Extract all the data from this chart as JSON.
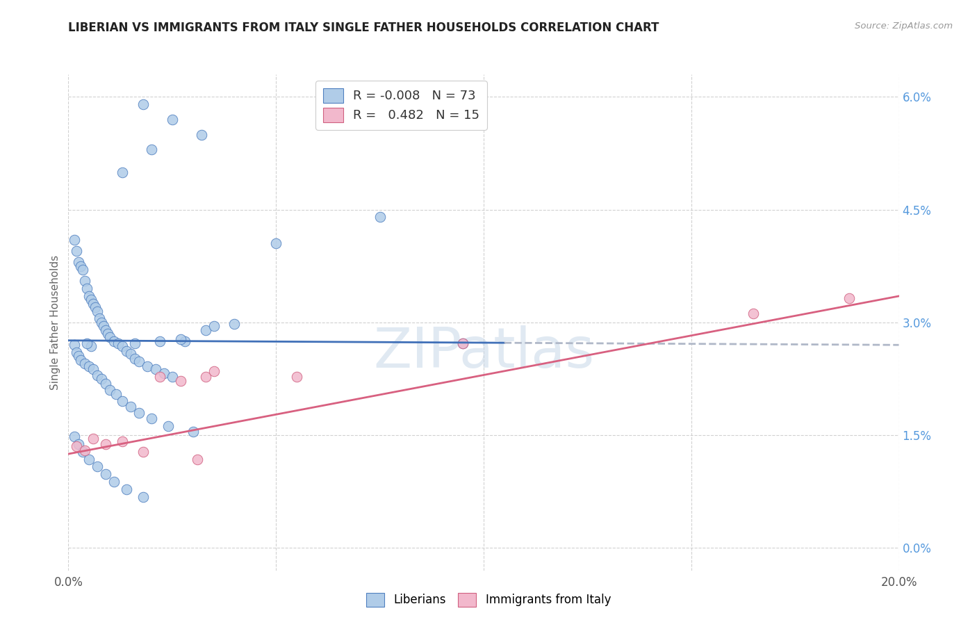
{
  "title": "LIBERIAN VS IMMIGRANTS FROM ITALY SINGLE FATHER HOUSEHOLDS CORRELATION CHART",
  "source": "Source: ZipAtlas.com",
  "ylabel": "Single Father Households",
  "ytick_vals": [
    0.0,
    1.5,
    3.0,
    4.5,
    6.0
  ],
  "ytick_labels": [
    "0.0%",
    "1.5%",
    "3.0%",
    "4.5%",
    "6.0%"
  ],
  "xtick_vals": [
    0,
    5,
    10,
    15,
    20
  ],
  "xtick_labels": [
    "0.0%",
    "",
    "",
    "",
    "20.0%"
  ],
  "xlim": [
    0.0,
    20.0
  ],
  "ylim": [
    -0.3,
    6.3
  ],
  "legend_line1": "R = -0.008   N = 73",
  "legend_line2": "R =   0.482   N = 15",
  "color_blue_fill": "#b0cce8",
  "color_blue_edge": "#5080c0",
  "color_pink_fill": "#f2b8cc",
  "color_pink_edge": "#d06080",
  "line_blue_color": "#4070b8",
  "line_pink_color": "#d86080",
  "line_dash_color": "#b0b8c8",
  "watermark_color": "#c8d8e8",
  "blue_line_x0": 0.0,
  "blue_line_y0": 2.76,
  "blue_line_x1": 20.0,
  "blue_line_y1": 2.7,
  "blue_solid_end_x": 10.5,
  "pink_line_x0": 0.0,
  "pink_line_y0": 1.25,
  "pink_line_x1": 20.0,
  "pink_line_y1": 3.35,
  "blue_x": [
    1.8,
    2.5,
    3.2,
    2.0,
    1.3,
    7.5,
    0.15,
    0.2,
    0.25,
    0.3,
    0.35,
    0.4,
    0.45,
    0.5,
    0.55,
    0.6,
    0.65,
    0.7,
    0.75,
    0.8,
    0.85,
    0.9,
    0.95,
    1.0,
    1.1,
    1.2,
    1.3,
    1.4,
    1.5,
    1.6,
    1.7,
    1.9,
    2.1,
    2.3,
    2.5,
    2.8,
    3.3,
    0.15,
    0.2,
    0.25,
    0.3,
    0.4,
    0.5,
    0.6,
    0.7,
    0.8,
    0.9,
    1.0,
    1.15,
    1.3,
    1.5,
    1.7,
    2.0,
    2.4,
    3.0,
    0.15,
    0.25,
    0.35,
    0.5,
    0.7,
    0.9,
    1.1,
    1.4,
    1.8,
    9.5,
    5.0,
    4.0,
    3.5,
    2.7,
    2.2,
    1.6,
    0.55,
    0.45
  ],
  "blue_y": [
    5.9,
    5.7,
    5.5,
    5.3,
    5.0,
    4.4,
    4.1,
    3.95,
    3.8,
    3.75,
    3.7,
    3.55,
    3.45,
    3.35,
    3.3,
    3.25,
    3.2,
    3.15,
    3.05,
    3.0,
    2.95,
    2.9,
    2.85,
    2.8,
    2.75,
    2.72,
    2.68,
    2.62,
    2.58,
    2.52,
    2.48,
    2.42,
    2.38,
    2.32,
    2.28,
    2.75,
    2.9,
    2.7,
    2.6,
    2.55,
    2.5,
    2.45,
    2.42,
    2.38,
    2.3,
    2.25,
    2.18,
    2.1,
    2.05,
    1.95,
    1.88,
    1.8,
    1.72,
    1.62,
    1.55,
    1.48,
    1.38,
    1.28,
    1.18,
    1.08,
    0.98,
    0.88,
    0.78,
    0.68,
    2.72,
    4.05,
    2.98,
    2.95,
    2.78,
    2.75,
    2.72,
    2.68,
    2.72
  ],
  "pink_x": [
    0.2,
    0.4,
    0.6,
    0.9,
    1.3,
    1.8,
    2.2,
    2.7,
    3.1,
    3.3,
    3.5,
    5.5,
    9.5,
    16.5,
    18.8
  ],
  "pink_y": [
    1.35,
    1.3,
    1.45,
    1.38,
    1.42,
    1.28,
    2.28,
    2.22,
    1.18,
    2.28,
    2.35,
    2.28,
    2.72,
    3.12,
    3.32
  ]
}
